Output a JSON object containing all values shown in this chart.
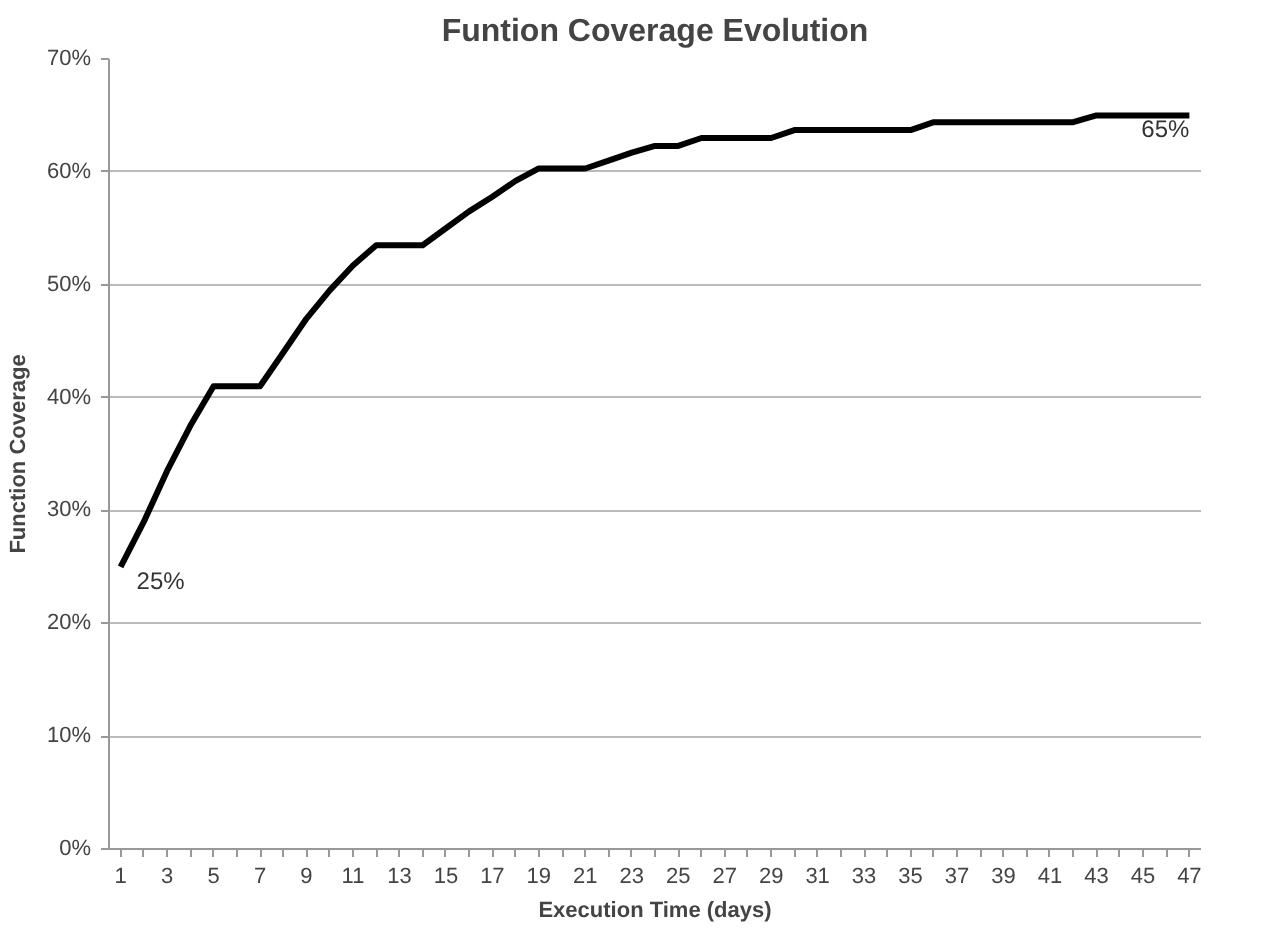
{
  "chart_data": {
    "type": "line",
    "title": "Funtion Coverage Evolution",
    "xlabel": "Execution Time (days)",
    "ylabel": "Function Coverage",
    "x": [
      1,
      2,
      3,
      4,
      5,
      6,
      7,
      8,
      9,
      10,
      11,
      12,
      13,
      14,
      15,
      16,
      17,
      18,
      19,
      20,
      21,
      22,
      23,
      24,
      25,
      26,
      27,
      28,
      29,
      30,
      31,
      32,
      33,
      34,
      35,
      36,
      37,
      38,
      39,
      40,
      41,
      42,
      43,
      44,
      45,
      46,
      47
    ],
    "series": [
      {
        "color": "#000000",
        "values": [
          25,
          29,
          33.5,
          37.5,
          41,
          41,
          41,
          44,
          47,
          49.5,
          51.7,
          53.5,
          53.5,
          53.5,
          55,
          56.5,
          57.8,
          59.2,
          60.3,
          60.3,
          60.3,
          61,
          61.7,
          62.3,
          62.3,
          63,
          63,
          63,
          63,
          63.7,
          63.7,
          63.7,
          63.7,
          63.7,
          63.7,
          64.4,
          64.4,
          64.4,
          64.4,
          64.4,
          64.4,
          64.4,
          65,
          65,
          65,
          65,
          65
        ]
      }
    ],
    "annotations": [
      {
        "text": "25%",
        "x": 1,
        "y": 25
      },
      {
        "text": "65%",
        "x": 47,
        "y": 65
      }
    ],
    "xlim": [
      0.5,
      47.5
    ],
    "xticks": [
      1,
      {
        "value": 2,
        "label": null
      },
      3,
      {
        "value": 4,
        "label": null
      },
      5,
      {
        "value": 6,
        "label": null
      },
      7,
      {
        "value": 8,
        "label": null
      },
      9,
      {
        "value": 10,
        "label": null
      },
      11,
      {
        "value": 12,
        "label": null
      },
      13,
      {
        "value": 14,
        "label": null
      },
      15,
      {
        "value": 16,
        "label": null
      },
      17,
      {
        "value": 18,
        "label": null
      },
      19,
      {
        "value": 20,
        "label": null
      },
      21,
      {
        "value": 22,
        "label": null
      },
      23,
      {
        "value": 24,
        "label": null
      },
      25,
      {
        "value": 26,
        "label": null
      },
      27,
      {
        "value": 28,
        "label": null
      },
      29,
      {
        "value": 30,
        "label": null
      },
      31,
      {
        "value": 32,
        "label": null
      },
      33,
      {
        "value": 34,
        "label": null
      },
      35,
      {
        "value": 36,
        "label": null
      },
      37,
      {
        "value": 38,
        "label": null
      },
      39,
      {
        "value": 40,
        "label": null
      },
      41,
      {
        "value": 42,
        "label": null
      },
      43,
      {
        "value": 44,
        "label": null
      },
      45,
      {
        "value": 46,
        "label": null
      },
      47
    ],
    "ylim": [
      0,
      70
    ],
    "yticks": [
      {
        "value": 0,
        "label": "0%"
      },
      {
        "value": 10,
        "label": "10%"
      },
      {
        "value": 20,
        "label": "20%"
      },
      {
        "value": 30,
        "label": "30%"
      },
      {
        "value": 40,
        "label": "40%"
      },
      {
        "value": 50,
        "label": "50%"
      },
      {
        "value": 60,
        "label": "60%"
      },
      {
        "value": 70,
        "label": "70%"
      }
    ],
    "grid": "y",
    "line_style": "solid"
  }
}
